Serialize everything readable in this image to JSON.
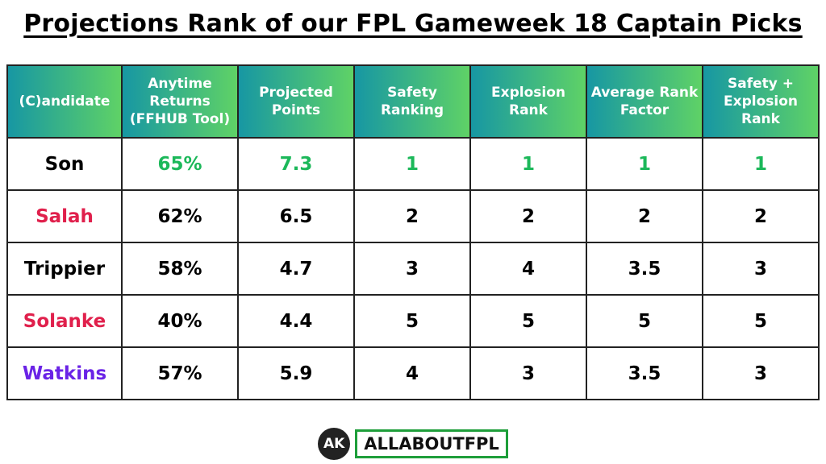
{
  "header": {
    "title": "Projections Rank of our FPL Gameweek 18 Captain Picks"
  },
  "table": {
    "columns": [
      "(C)andidate",
      "Anytime Returns (FFHUB Tool)",
      "Projected Points",
      "Safety Ranking",
      "Explosion Rank",
      "Average Rank Factor",
      "Safety + Explosion Rank"
    ],
    "rows": [
      [
        "Son",
        "65%",
        "7.3",
        "1",
        "1",
        "1",
        "1"
      ],
      [
        "Salah",
        "62%",
        "6.5",
        "2",
        "2",
        "2",
        "2"
      ],
      [
        "Trippier",
        "58%",
        "4.7",
        "3",
        "4",
        "3.5",
        "3"
      ],
      [
        "Solanke",
        "40%",
        "4.4",
        "5",
        "5",
        "5",
        "5"
      ],
      [
        "Watkins",
        "57%",
        "5.9",
        "4",
        "3",
        "3.5",
        "3"
      ]
    ]
  },
  "footer": {
    "logo_mark": "AK",
    "brand": "ALLABOUTFPL"
  }
}
